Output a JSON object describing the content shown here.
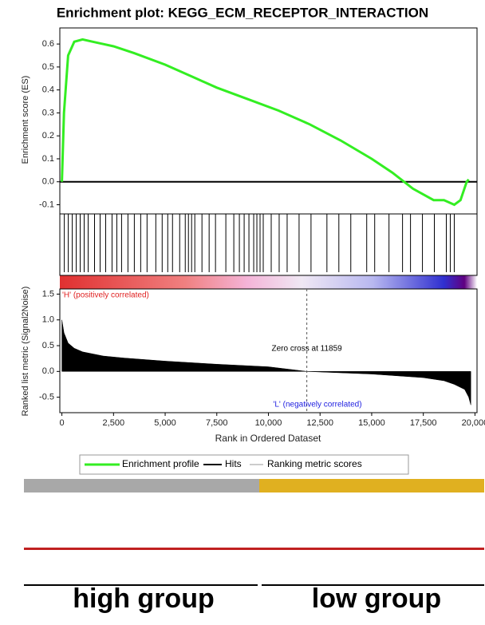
{
  "chart_data": [
    {
      "type": "line",
      "title": "Enrichment plot: KEGG_ECM_RECEPTOR_INTERACTION",
      "y_label": "Enrichment score (ES)",
      "xlim": [
        -100,
        20100
      ],
      "ylim": [
        -0.14,
        0.67
      ],
      "yticks": [
        -0.1,
        {
          "value": 0,
          "label": "0.0"
        },
        0.1,
        0.2,
        0.3,
        0.4,
        0.5,
        0.6
      ],
      "x": [
        0,
        100,
        300,
        600,
        1000,
        1500,
        2500,
        3500,
        5000,
        6500,
        7500,
        9000,
        10500,
        12000,
        13500,
        15000,
        16000,
        17000,
        18000,
        18500,
        19000,
        19300,
        19600,
        19700
      ],
      "series": [
        {
          "name": "Enrichment profile",
          "color": "#33ee22",
          "values": [
            0,
            0.3,
            0.55,
            0.61,
            0.62,
            0.61,
            0.59,
            0.56,
            0.51,
            0.45,
            0.41,
            0.36,
            0.31,
            0.25,
            0.18,
            0.1,
            0.04,
            -0.03,
            -0.08,
            -0.08,
            -0.1,
            -0.08,
            0.0,
            0.01
          ]
        }
      ]
    },
    {
      "type": "rug",
      "xlim": [
        -100,
        20100
      ],
      "series": [
        {
          "name": "Hits",
          "color": "#000000",
          "x": [
            116,
            308,
            501,
            694,
            886,
            1079,
            1272,
            1580,
            1850,
            2120,
            2428,
            2659,
            2890,
            3198,
            3507,
            3815,
            4123,
            4547,
            4855,
            5125,
            5356,
            5703,
            5973,
            6127,
            6281,
            6435,
            6782,
            7129,
            7437,
            7938,
            8324,
            8593,
            8825,
            9056,
            9287,
            9441,
            9595,
            9749,
            10135,
            10520,
            10906,
            11484,
            12062,
            12832,
            13410,
            13988,
            14759,
            15145,
            15838,
            16493,
            16879,
            17457,
            18034,
            18613,
            18805,
            18998
          ]
        }
      ]
    },
    {
      "type": "area",
      "y_label": "Ranked list metric (Signal2Noise)",
      "x_label": "Rank in Ordered Dataset",
      "xlim": [
        -100,
        20100
      ],
      "ylim": [
        -0.8,
        1.6
      ],
      "xticks": [
        0,
        {
          "value": 2500,
          "label": "2,500"
        },
        {
          "value": 5000,
          "label": "5,000"
        },
        {
          "value": 7500,
          "label": "7,500"
        },
        {
          "value": 10000,
          "label": "10,000"
        },
        {
          "value": 12500,
          "label": "12,500"
        },
        {
          "value": 15000,
          "label": "15,000"
        },
        {
          "value": 17500,
          "label": "17,500"
        },
        {
          "value": 20000,
          "label": "20,000"
        }
      ],
      "yticks": [
        -0.5,
        {
          "value": 0,
          "label": "0.0"
        },
        0.5,
        {
          "value": 1,
          "label": "1.0"
        },
        1.5
      ],
      "x": [
        0,
        100,
        300,
        600,
        1000,
        2000,
        3000,
        5000,
        7500,
        10000,
        11859,
        12500,
        15000,
        17500,
        18500,
        19000,
        19500,
        19700,
        19800
      ],
      "series": [
        {
          "name": "Ranking metric scores",
          "color": "#000000",
          "values": [
            1.0,
            0.75,
            0.55,
            0.45,
            0.38,
            0.3,
            0.26,
            0.2,
            0.14,
            0.09,
            0.0,
            -0.01,
            -0.05,
            -0.12,
            -0.18,
            -0.25,
            -0.35,
            -0.5,
            -0.65
          ]
        }
      ],
      "zero_cross": 11859,
      "zero_cross_label": "Zero cross at 11859",
      "high_label": "'H' (positively correlated)",
      "low_label": "'L' (negatively correlated)"
    }
  ],
  "heatmap": {
    "groups": [
      "high group",
      "low group"
    ]
  }
}
